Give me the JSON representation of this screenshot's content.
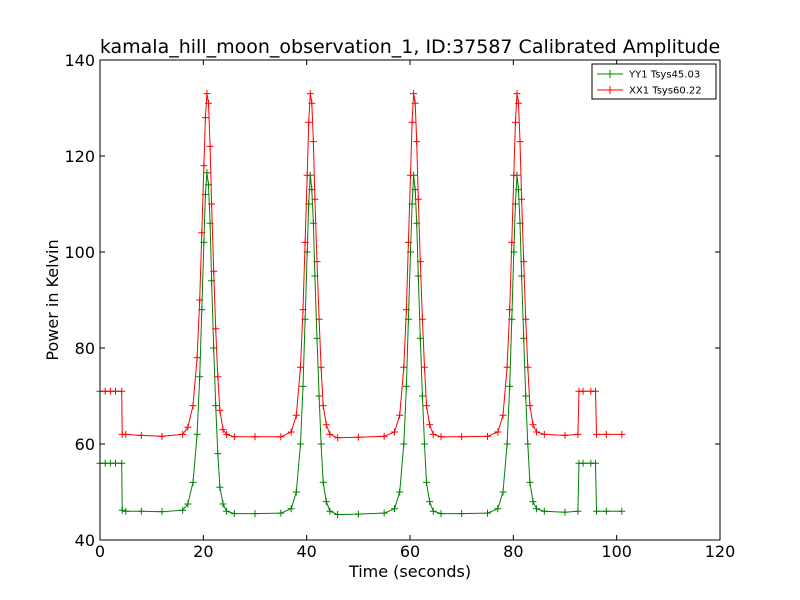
{
  "chart_data": {
    "type": "line",
    "title": "kamala_hill_moon_observation_1, ID:37587 Calibrated Amplitude",
    "xlabel": "Time (seconds)",
    "ylabel": "Power in Kelvin",
    "xlim": [
      0,
      120
    ],
    "ylim": [
      40,
      140
    ],
    "xticks": [
      0,
      20,
      40,
      60,
      80,
      100,
      120
    ],
    "yticks": [
      40,
      60,
      80,
      100,
      120,
      140
    ],
    "grid": false,
    "legend_position": "top-right",
    "marker": "+",
    "series": [
      {
        "name": "YY1 Tsys45.03",
        "color": "#008000",
        "segments": [
          {
            "x": [
              0,
              1,
              2,
              3,
              4.2,
              4.3,
              5,
              8,
              12,
              16,
              17,
              18,
              18.8,
              19.3,
              19.7,
              20.1,
              20.4,
              20.7,
              21,
              21.3,
              21.6,
              22,
              22.4,
              22.8,
              23.2,
              23.8,
              24.5,
              26,
              30,
              35,
              37,
              38,
              38.8,
              39.3,
              39.7,
              40.1,
              40.4,
              40.7,
              41,
              41.3,
              41.6,
              42,
              42.4,
              42.8,
              43.2,
              43.8,
              44.5,
              46,
              50,
              55,
              57,
              58,
              58.8,
              59.3,
              59.7,
              60.1,
              60.4,
              60.7,
              61,
              61.3,
              61.6,
              62,
              62.4,
              62.8,
              63.2,
              63.8,
              64.5,
              66,
              70,
              75,
              77,
              78,
              78.8,
              79.3,
              79.7,
              80.1,
              80.4,
              80.7,
              81,
              81.3,
              81.6,
              82,
              82.4,
              82.8,
              83.2,
              83.8,
              84.5,
              86,
              90,
              92.5,
              92.7,
              93.5,
              95,
              95.9,
              96.1,
              98,
              101
            ],
            "y": [
              56,
              56,
              56,
              56,
              56,
              46.2,
              46,
              46,
              45.9,
              46.2,
              47.5,
              52,
              62,
              74,
              88,
              102,
              112,
              116.5,
              114,
              106,
              94,
              80,
              68,
              58,
              51,
              47.5,
              46,
              45.5,
              45.5,
              45.6,
              46.5,
              50,
              60,
              72,
              86,
              100,
              110,
              116,
              113,
              106,
              95,
              82,
              70,
              60,
              52,
              48,
              46,
              45.3,
              45.4,
              45.6,
              46.5,
              50,
              60,
              72,
              86,
              100,
              110,
              116,
              113,
              106,
              95,
              82,
              70,
              60,
              52,
              48,
              46,
              45.5,
              45.5,
              45.6,
              46.5,
              50,
              60,
              72,
              86,
              100,
              110,
              116,
              113,
              106,
              95,
              82,
              70,
              60,
              52,
              48,
              46.5,
              46,
              45.8,
              46,
              56,
              56,
              56,
              56,
              46,
              46,
              46
            ]
          }
        ]
      },
      {
        "name": "XX1 Tsys60.22",
        "color": "#ff0000",
        "segments": [
          {
            "x": [
              0,
              1,
              2,
              3,
              4.2,
              4.3,
              5,
              8,
              12,
              16,
              17,
              18,
              18.8,
              19.3,
              19.7,
              20.1,
              20.4,
              20.7,
              21,
              21.3,
              21.6,
              22,
              22.4,
              22.8,
              23.2,
              23.8,
              24.5,
              26,
              30,
              35,
              37,
              38,
              38.8,
              39.3,
              39.7,
              40.1,
              40.4,
              40.7,
              41,
              41.3,
              41.6,
              42,
              42.4,
              42.8,
              43.2,
              43.8,
              44.5,
              46,
              50,
              55,
              57,
              58,
              58.8,
              59.3,
              59.7,
              60.1,
              60.4,
              60.7,
              61,
              61.3,
              61.6,
              62,
              62.4,
              62.8,
              63.2,
              63.8,
              64.5,
              66,
              70,
              75,
              77,
              78,
              78.8,
              79.3,
              79.7,
              80.1,
              80.4,
              80.7,
              81,
              81.3,
              81.6,
              82,
              82.4,
              82.8,
              83.2,
              83.8,
              84.5,
              86,
              90,
              92.5,
              92.7,
              93.5,
              95,
              95.9,
              96.1,
              98,
              101
            ],
            "y": [
              71,
              71,
              71,
              71,
              71,
              62,
              62,
              61.8,
              61.6,
              62,
              63.5,
              68,
              78,
              90,
              104,
              118,
              128,
              133,
              131,
              122,
              110,
              96,
              84,
              74,
              67,
              63,
              62,
              61.5,
              61.5,
              61.5,
              62.5,
              66,
              76,
              88,
              102,
              116,
              127,
              133,
              131,
              123,
              111,
              98,
              86,
              76,
              68,
              64,
              62,
              61.3,
              61.4,
              61.6,
              62.5,
              66,
              76,
              88,
              102,
              116,
              127,
              133,
              131,
              123,
              111,
              98,
              86,
              76,
              68,
              64,
              62,
              61.5,
              61.5,
              61.6,
              62.5,
              66,
              76,
              88,
              102,
              116,
              127,
              133,
              131,
              123,
              111,
              98,
              86,
              76,
              68,
              64,
              62.5,
              62,
              61.8,
              62,
              71,
              71,
              71,
              71,
              62,
              62,
              62
            ]
          }
        ]
      }
    ]
  }
}
